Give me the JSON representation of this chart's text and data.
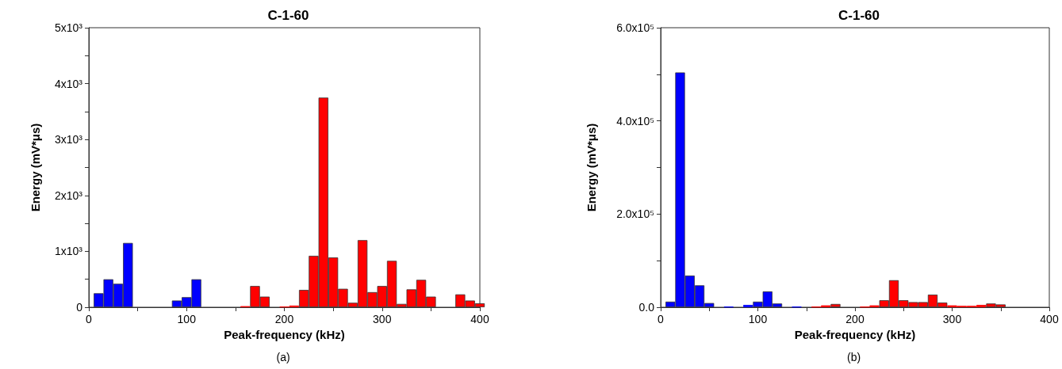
{
  "chart_data": [
    {
      "type": "bar",
      "title": "C-1-60",
      "xlabel": "Peak-frequency (kHz)",
      "ylabel": "Energy (mV*μs)",
      "annotations": [
        "(a)"
      ],
      "series": [
        {
          "color": "#0000ff",
          "x": [
            10,
            20,
            30,
            40,
            90,
            100,
            110
          ],
          "values": [
            250,
            500,
            420,
            1150,
            120,
            180,
            500
          ]
        },
        {
          "color": "#ff0000",
          "x": [
            160,
            170,
            180,
            200,
            210,
            220,
            230,
            240,
            250,
            260,
            270,
            280,
            290,
            300,
            310,
            320,
            330,
            340,
            350,
            380,
            390,
            400
          ],
          "values": [
            20,
            380,
            190,
            10,
            30,
            310,
            920,
            3750,
            890,
            330,
            80,
            1200,
            270,
            380,
            830,
            60,
            320,
            490,
            190,
            230,
            120,
            70
          ]
        }
      ],
      "xlim": [
        0,
        400
      ],
      "xticks": [
        0,
        {
          "value": 50,
          "label": null
        },
        100,
        {
          "value": 150,
          "label": null
        },
        200,
        {
          "value": 250,
          "label": null
        },
        300,
        {
          "value": 350,
          "label": null
        },
        400
      ],
      "ylim": [
        0,
        5000
      ],
      "yticks": [
        {
          "value": 0,
          "label": "0"
        },
        {
          "value": 500,
          "label": null
        },
        {
          "value": 1000,
          "label": "1x10³"
        },
        {
          "value": 1500,
          "label": null
        },
        {
          "value": 2000,
          "label": "2x10³"
        },
        {
          "value": 2500,
          "label": null
        },
        {
          "value": 3000,
          "label": "3x10³"
        },
        {
          "value": 3500,
          "label": null
        },
        {
          "value": 4000,
          "label": "4x10³"
        },
        {
          "value": 4500,
          "label": null
        },
        {
          "value": 5000,
          "label": "5x10³"
        }
      ],
      "grid": false
    },
    {
      "type": "bar",
      "title": "C-1-60",
      "xlabel": "Peak-frequency (kHz)",
      "ylabel": "Energy (mV*μs)",
      "annotations": [
        "(b)"
      ],
      "series": [
        {
          "color": "#0000ff",
          "x": [
            10,
            20,
            30,
            40,
            50,
            70,
            90,
            100,
            110,
            120,
            140
          ],
          "values": [
            12000,
            504000,
            68000,
            47000,
            9000,
            1000,
            5000,
            12000,
            34000,
            8000,
            1000
          ]
        },
        {
          "color": "#ff0000",
          "x": [
            160,
            170,
            180,
            210,
            220,
            230,
            240,
            250,
            260,
            270,
            280,
            290,
            300,
            310,
            320,
            330,
            340,
            350
          ],
          "values": [
            1000,
            4000,
            7000,
            1000,
            4000,
            15000,
            58000,
            15000,
            11000,
            11000,
            27000,
            10000,
            4000,
            3000,
            3000,
            5000,
            8000,
            6000
          ]
        }
      ],
      "xlim": [
        0,
        400
      ],
      "xticks": [
        0,
        {
          "value": 50,
          "label": null
        },
        100,
        {
          "value": 150,
          "label": null
        },
        200,
        {
          "value": 250,
          "label": null
        },
        300,
        {
          "value": 350,
          "label": null
        },
        400
      ],
      "ylim": [
        0,
        600000
      ],
      "yticks": [
        {
          "value": 0,
          "label": "0.0"
        },
        {
          "value": 100000,
          "label": null
        },
        {
          "value": 200000,
          "label": "2.0x10⁵"
        },
        {
          "value": 300000,
          "label": null
        },
        {
          "value": 400000,
          "label": "4.0x10⁵"
        },
        {
          "value": 500000,
          "label": null
        },
        {
          "value": 600000,
          "label": "6.0x10⁵"
        }
      ],
      "grid": false
    }
  ]
}
